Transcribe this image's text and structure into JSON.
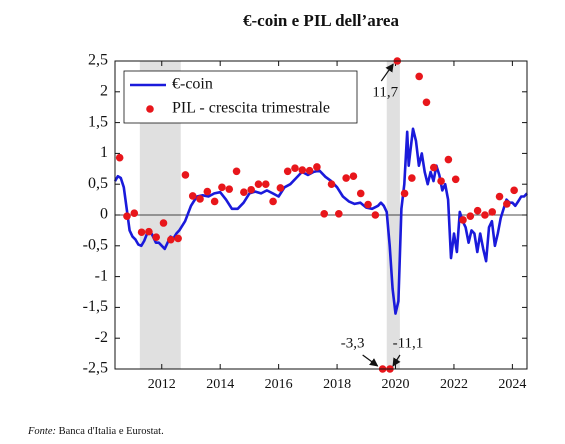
{
  "chart_data": {
    "type": "line",
    "title": "€-coin e PIL dell’area",
    "source_label": "Fonte:",
    "source_text": "Banca d'Italia e Eurostat.",
    "xlim": [
      2010.4,
      2024.5
    ],
    "xticks": [
      2012,
      2014,
      2016,
      2018,
      2020,
      2022,
      2024
    ],
    "ylim": [
      -2.5,
      2.5
    ],
    "yticks": [
      {
        "value": 2.5,
        "label": "2,5"
      },
      2,
      {
        "value": 1.5,
        "label": "1,5"
      },
      1,
      {
        "value": 0.5,
        "label": "0,5"
      },
      0,
      {
        "value": -0.5,
        "label": "-0,5"
      },
      -1,
      {
        "value": -1.5,
        "label": "-1,5"
      },
      -2,
      {
        "value": -2.5,
        "label": "-2,5"
      }
    ],
    "zero_line": true,
    "grid": false,
    "legend": "top-left",
    "shaded_periods": [
      [
        2011.25,
        2012.65
      ],
      [
        2019.7,
        2020.15
      ]
    ],
    "shade_color": "#e0e0e0",
    "series": [
      {
        "name": "€-coin",
        "type": "line",
        "color": "#1a1adb",
        "x": [
          2010.4,
          2010.5,
          2010.6,
          2010.7,
          2010.8,
          2010.9,
          2011.0,
          2011.1,
          2011.2,
          2011.3,
          2011.4,
          2011.5,
          2011.6,
          2011.7,
          2011.8,
          2011.9,
          2012.0,
          2012.1,
          2012.2,
          2012.3,
          2012.4,
          2012.5,
          2012.6,
          2012.8,
          2013.0,
          2013.2,
          2013.4,
          2013.6,
          2013.8,
          2014.0,
          2014.2,
          2014.4,
          2014.6,
          2014.8,
          2015.0,
          2015.2,
          2015.4,
          2015.6,
          2015.8,
          2016.0,
          2016.2,
          2016.4,
          2016.6,
          2016.8,
          2017.0,
          2017.2,
          2017.4,
          2017.6,
          2017.8,
          2018.0,
          2018.2,
          2018.4,
          2018.6,
          2018.8,
          2019.0,
          2019.2,
          2019.4,
          2019.5,
          2019.6,
          2019.7,
          2019.8,
          2019.9,
          2020.0,
          2020.1,
          2020.2,
          2020.3,
          2020.4,
          2020.45,
          2020.5,
          2020.6,
          2020.7,
          2020.8,
          2020.9,
          2021.0,
          2021.1,
          2021.2,
          2021.3,
          2021.4,
          2021.5,
          2021.6,
          2021.7,
          2021.8,
          2021.9,
          2022.0,
          2022.1,
          2022.2,
          2022.3,
          2022.4,
          2022.5,
          2022.6,
          2022.7,
          2022.8,
          2022.9,
          2023.0,
          2023.1,
          2023.2,
          2023.3,
          2023.4,
          2023.5,
          2023.6,
          2023.7,
          2023.8,
          2023.9,
          2024.0,
          2024.1,
          2024.2,
          2024.3,
          2024.4,
          2024.5
        ],
        "values": [
          0.55,
          0.63,
          0.6,
          0.45,
          0.1,
          -0.25,
          -0.35,
          -0.4,
          -0.48,
          -0.5,
          -0.42,
          -0.3,
          -0.25,
          -0.35,
          -0.45,
          -0.45,
          -0.5,
          -0.55,
          -0.45,
          -0.35,
          -0.38,
          -0.3,
          -0.25,
          -0.1,
          0.15,
          0.3,
          0.32,
          0.3,
          0.35,
          0.37,
          0.25,
          0.1,
          0.1,
          0.2,
          0.35,
          0.38,
          0.35,
          0.4,
          0.35,
          0.3,
          0.45,
          0.5,
          0.6,
          0.7,
          0.65,
          0.7,
          0.72,
          0.62,
          0.55,
          0.45,
          0.3,
          0.22,
          0.18,
          0.2,
          0.12,
          0.1,
          0.15,
          0.2,
          0.15,
          0.05,
          -0.5,
          -1.2,
          -1.6,
          -1.4,
          0.1,
          0.5,
          1.35,
          0.8,
          1.0,
          1.4,
          1.2,
          0.8,
          1.0,
          0.7,
          0.5,
          0.7,
          0.55,
          0.8,
          0.65,
          0.4,
          0.5,
          0.25,
          -0.7,
          -0.3,
          -0.6,
          0.05,
          -0.1,
          -0.2,
          -0.45,
          -0.25,
          -0.3,
          -0.6,
          -0.3,
          -0.55,
          -0.75,
          -0.2,
          -0.1,
          -0.5,
          -0.3,
          -0.05,
          0.1,
          0.25,
          0.2,
          0.2,
          0.15,
          0.22,
          0.3,
          0.3,
          0.35
        ]
      },
      {
        "name": "PIL - crescita trimestrale",
        "type": "scatter",
        "color": "#e8161b",
        "x": [
          2010.56,
          2010.81,
          2011.06,
          2011.31,
          2011.56,
          2011.81,
          2012.06,
          2012.31,
          2012.56,
          2012.81,
          2013.06,
          2013.31,
          2013.56,
          2013.81,
          2014.06,
          2014.31,
          2014.56,
          2014.81,
          2015.06,
          2015.31,
          2015.56,
          2015.81,
          2016.06,
          2016.31,
          2016.56,
          2016.81,
          2017.06,
          2017.31,
          2017.56,
          2017.81,
          2018.06,
          2018.31,
          2018.56,
          2018.81,
          2019.06,
          2019.31,
          2019.56,
          2019.81,
          2020.06,
          2020.31,
          2020.56,
          2020.81,
          2021.06,
          2021.31,
          2021.56,
          2021.81,
          2022.06,
          2022.31,
          2022.56,
          2022.81,
          2023.06,
          2023.31,
          2023.56,
          2023.81,
          2024.06
        ],
        "values": [
          0.93,
          -0.02,
          0.03,
          -0.28,
          -0.27,
          -0.36,
          -0.13,
          -0.4,
          -0.38,
          0.65,
          0.31,
          0.26,
          0.38,
          0.22,
          0.45,
          0.42,
          0.71,
          0.37,
          0.41,
          0.5,
          0.5,
          0.22,
          0.44,
          0.71,
          0.76,
          0.73,
          0.72,
          0.78,
          0.02,
          0.5,
          0.02,
          0.6,
          0.63,
          0.35,
          0.17,
          0.0,
          -3.3,
          -11.1,
          11.7,
          0.35,
          0.6,
          2.25,
          1.83,
          0.77,
          0.55,
          0.9,
          0.58,
          -0.08,
          -0.02,
          0.07,
          0.0,
          0.05,
          0.3,
          0.18,
          0.4
        ],
        "value_labels": [
          null,
          null,
          null,
          null,
          null,
          null,
          null,
          null,
          null,
          null,
          null,
          null,
          null,
          null,
          null,
          null,
          null,
          null,
          null,
          null,
          null,
          null,
          null,
          null,
          null,
          null,
          null,
          null,
          null,
          null,
          null,
          null,
          null,
          null,
          null,
          null,
          "-3,3",
          "-11,1",
          "11,7",
          null,
          null,
          null,
          null,
          null,
          null,
          null,
          null,
          null,
          null,
          null,
          null,
          null,
          null,
          null,
          null
        ]
      }
    ]
  }
}
